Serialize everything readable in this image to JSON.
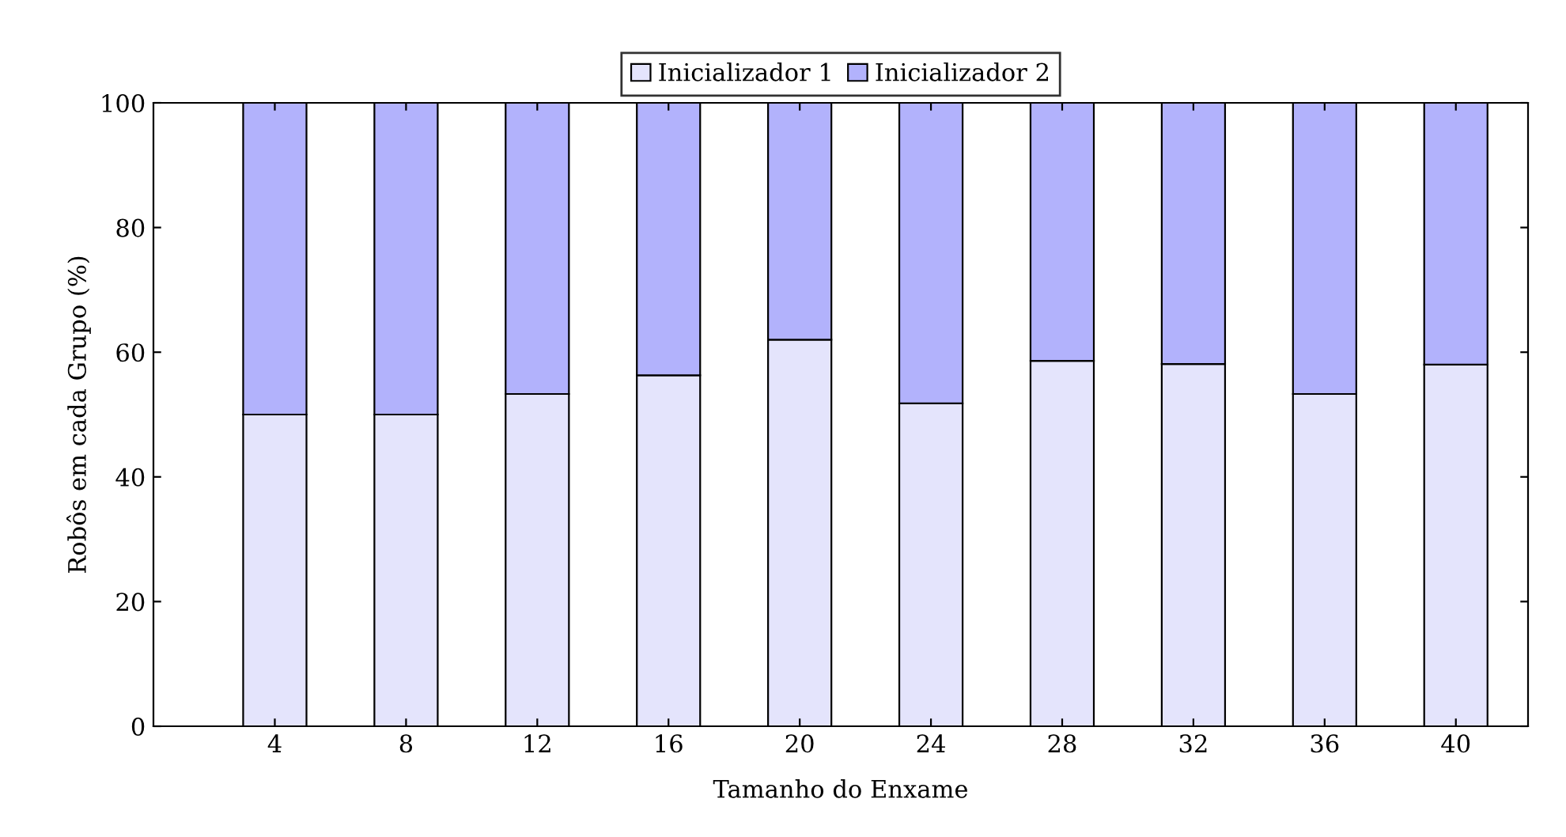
{
  "chart_data": {
    "type": "bar",
    "stacked": true,
    "xlabel": "Tamanho do Enxame",
    "ylabel": "Robôs em cada Grupo (%)",
    "x": [
      4,
      8,
      12,
      16,
      20,
      24,
      28,
      32,
      36,
      40
    ],
    "series": [
      {
        "name": "Inicializador 1",
        "color": "#e4e4fc",
        "values": [
          50,
          50,
          53.3,
          56.3,
          62,
          51.8,
          58.6,
          58.1,
          53.3,
          58
        ]
      },
      {
        "name": "Inicializador 2",
        "color": "#b2b2fc",
        "values": [
          50,
          50,
          46.7,
          43.7,
          38,
          48.2,
          41.4,
          41.9,
          46.7,
          42
        ]
      }
    ],
    "xlim": [
      0.3,
      42.2
    ],
    "xticks": [
      4,
      8,
      12,
      16,
      20,
      24,
      28,
      32,
      36,
      40
    ],
    "ylim": [
      0,
      100
    ],
    "yticks": [
      0,
      20,
      40,
      60,
      80,
      100
    ],
    "grid": false,
    "legend": "top"
  }
}
